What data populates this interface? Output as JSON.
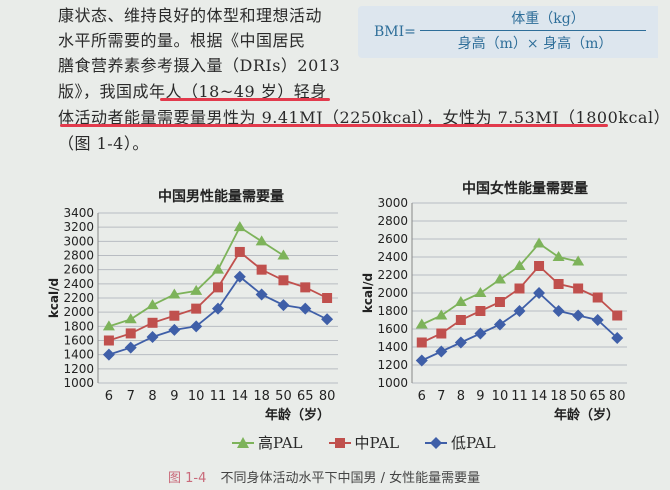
{
  "text": {
    "line1": "康状态、维持良好的体型和理想活动",
    "line2": "水平所需要的量。根据《中国居民",
    "line3": "膳食营养素参考摄入量（DRIs）2013",
    "line4": "版》，我国成年人（18~49 岁）轻身",
    "line5": "体活动者能量需要量男性为 9.41MJ（2250kcal），女性为 7.53MJ（1800kcal）",
    "line6": "（图 1-4）。"
  },
  "bmi": {
    "label": "BMI=",
    "numerator": "体重（kg）",
    "denominator": "身高（m）× 身高（m）"
  },
  "legend": {
    "high": "高PAL",
    "mid": "中PAL",
    "low": "低PAL"
  },
  "colors": {
    "high": "#7db35a",
    "mid": "#c0504d",
    "low": "#3f5fa8",
    "underline": "#e23a4c"
  },
  "caption": {
    "fig": "图 1-4",
    "text": "不同身体活动水平下中国男 / 女性能量需要量"
  },
  "chart_data": [
    {
      "type": "line",
      "title": "中国男性能量需要量",
      "xlabel": "年龄（岁）",
      "ylabel": "kcal/d",
      "categories": [
        "6",
        "7",
        "8",
        "9",
        "10",
        "11",
        "14",
        "18",
        "50",
        "65",
        "80"
      ],
      "ylim": [
        1000,
        3400
      ],
      "yticks": [
        1000,
        1200,
        1400,
        1600,
        1800,
        2000,
        2200,
        2400,
        2600,
        2800,
        3000,
        3200,
        3400
      ],
      "grid": true,
      "series": [
        {
          "name": "高PAL",
          "marker": "triangle",
          "values": [
            1800,
            1900,
            2100,
            2250,
            2300,
            2600,
            3200,
            3000,
            2800,
            null,
            null
          ]
        },
        {
          "name": "中PAL",
          "marker": "square",
          "values": [
            1600,
            1700,
            1850,
            1950,
            2050,
            2350,
            2850,
            2600,
            2450,
            2350,
            2200
          ]
        },
        {
          "name": "低PAL",
          "marker": "diamond",
          "values": [
            1400,
            1500,
            1650,
            1750,
            1800,
            2050,
            2500,
            2250,
            2100,
            2050,
            1900
          ]
        }
      ]
    },
    {
      "type": "line",
      "title": "中国女性能量需要量",
      "xlabel": "年龄（岁）",
      "ylabel": "kcal/d",
      "categories": [
        "6",
        "7",
        "8",
        "9",
        "10",
        "11",
        "14",
        "18",
        "50",
        "65",
        "80"
      ],
      "ylim": [
        1000,
        3000
      ],
      "yticks": [
        1000,
        1200,
        1400,
        1600,
        1800,
        2000,
        2200,
        2400,
        2600,
        2800,
        3000
      ],
      "grid": true,
      "series": [
        {
          "name": "高PAL",
          "marker": "triangle",
          "values": [
            1650,
            1750,
            1900,
            2000,
            2150,
            2300,
            2550,
            2400,
            2350,
            null,
            null
          ]
        },
        {
          "name": "中PAL",
          "marker": "square",
          "values": [
            1450,
            1550,
            1700,
            1800,
            1900,
            2050,
            2300,
            2100,
            2050,
            1950,
            1750
          ]
        },
        {
          "name": "低PAL",
          "marker": "diamond",
          "values": [
            1250,
            1350,
            1450,
            1550,
            1650,
            1800,
            2000,
            1800,
            1750,
            1700,
            1500
          ]
        }
      ]
    }
  ]
}
